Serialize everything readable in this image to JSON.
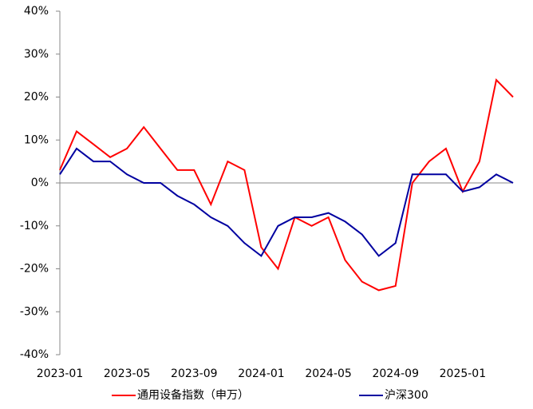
{
  "chart_data": {
    "type": "line",
    "x": [
      "2023-01",
      null,
      null,
      null,
      "2023-05",
      null,
      null,
      null,
      "2023-09",
      null,
      null,
      null,
      "2024-01",
      null,
      null,
      null,
      "2024-05",
      null,
      null,
      null,
      "2024-09",
      null,
      null,
      null,
      "2025-01",
      null,
      null,
      null
    ],
    "series": [
      {
        "name": "通用设备指数（申万）",
        "color": "#ff0000",
        "values": [
          3,
          12,
          9,
          6,
          8,
          13,
          8,
          3,
          3,
          -5,
          5,
          3,
          -15,
          -20,
          -8,
          -10,
          -8,
          -18,
          -23,
          -25,
          -24,
          0,
          5,
          8,
          -2,
          5,
          24,
          20
        ]
      },
      {
        "name": "沪深300",
        "color": "#0000a0",
        "values": [
          2,
          8,
          5,
          5,
          2,
          0,
          0,
          -3,
          -5,
          -8,
          -10,
          -14,
          -17,
          -10,
          -8,
          -8,
          -7,
          -9,
          -12,
          -17,
          -14,
          2,
          2,
          2,
          -2,
          -1,
          2,
          0
        ]
      }
    ],
    "ylim": [
      -40,
      40
    ],
    "yticks": [
      {
        "value": -40,
        "label": "-40%"
      },
      {
        "value": -30,
        "label": "-30%"
      },
      {
        "value": -20,
        "label": "-20%"
      },
      {
        "value": -10,
        "label": "-10%"
      },
      {
        "value": 0,
        "label": "0%"
      },
      {
        "value": 10,
        "label": "10%"
      },
      {
        "value": 20,
        "label": "20%"
      },
      {
        "value": 30,
        "label": "30%"
      },
      {
        "value": 40,
        "label": "40%"
      }
    ],
    "legend": "bottom"
  }
}
